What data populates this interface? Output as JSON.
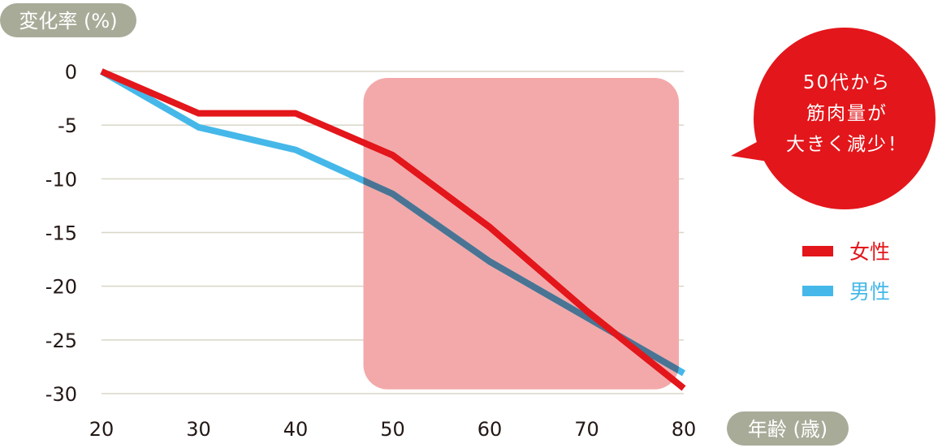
{
  "chart_data": {
    "type": "line",
    "ylabel": "変化率 (%)",
    "xlabel": "年齢 (歳)",
    "x": [
      20,
      30,
      40,
      50,
      60,
      70,
      80
    ],
    "xlim": [
      20,
      80
    ],
    "ylim": [
      -30,
      0
    ],
    "yticks": [
      0,
      -5,
      -10,
      -15,
      -20,
      -25,
      -30
    ],
    "xticks": [
      20,
      30,
      40,
      50,
      60,
      70,
      80
    ],
    "grid": true,
    "legend_position": "right",
    "series": [
      {
        "name": "女性",
        "color": "#e3161b",
        "values": [
          0,
          -3.9,
          -3.9,
          -7.8,
          -14.5,
          -22.3,
          -29.5
        ]
      },
      {
        "name": "男性",
        "color": "#45b8e9",
        "values": [
          0,
          -5.2,
          -7.3,
          -11.4,
          -17.7,
          -22.9,
          -28.1
        ]
      }
    ],
    "highlight": {
      "x_range": [
        50,
        80
      ],
      "y_range": [
        0,
        -29
      ],
      "color": "#f3a9aa"
    },
    "annotation": {
      "lines": [
        "50代から",
        "筋肉量が",
        "大きく減少！"
      ],
      "color": "#e3161b"
    }
  },
  "colors": {
    "pill": "#a9ab99",
    "grid": "#d8d6c8",
    "overlap": "#4a7493"
  }
}
